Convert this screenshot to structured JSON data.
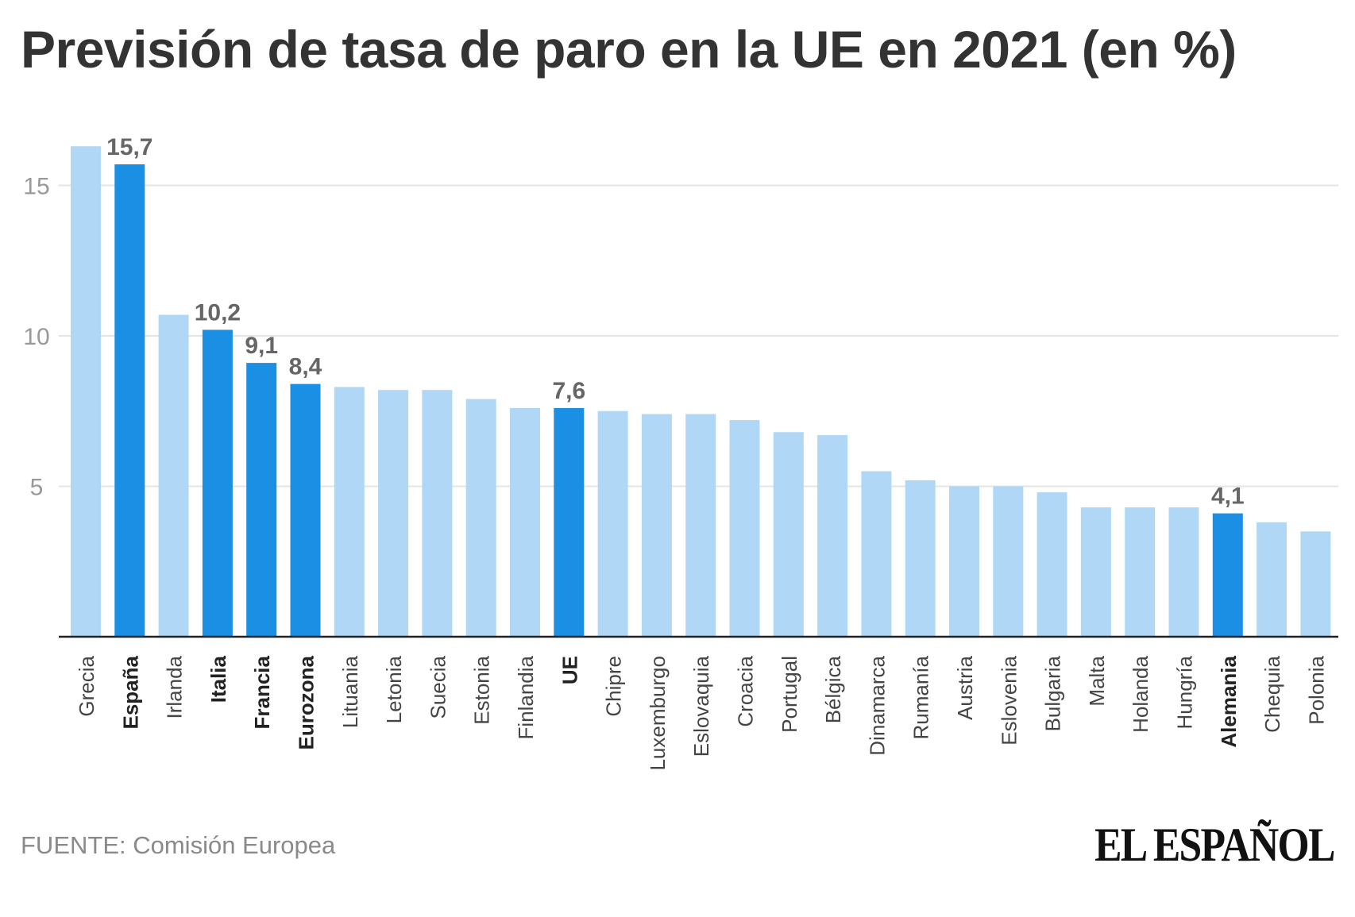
{
  "title": "Previsión de tasa de paro en la UE en 2021 (en %)",
  "source": "FUENTE: Comisión Europea",
  "brand": "EL ESPAÑOL",
  "colors": {
    "highlight": "#1a8fe3",
    "normal": "#b0d8f6",
    "grid": "#e4e4e4",
    "axis": "#222222",
    "tick_label": "#999999",
    "value_label": "#666666",
    "category_label": "#444444"
  },
  "chart_data": {
    "type": "bar",
    "title": "Previsión de tasa de paro en la UE en 2021 (en %)",
    "xlabel": "",
    "ylabel": "",
    "ylim": [
      0,
      16.5
    ],
    "yticks": [
      5,
      10,
      15
    ],
    "grid": true,
    "categories": [
      "Grecia",
      "España",
      "Irlanda",
      "Italia",
      "Francia",
      "Eurozona",
      "Lituania",
      "Letonia",
      "Suecia",
      "Estonia",
      "Finlandia",
      "UE",
      "Chipre",
      "Luxemburgo",
      "Eslovaquia",
      "Croacia",
      "Portugal",
      "Bélgica",
      "Dinamarca",
      "Rumanía",
      "Austria",
      "Eslovenia",
      "Bulgaria",
      "Malta",
      "Holanda",
      "Hungría",
      "Alemania",
      "Chequia",
      "Polonia"
    ],
    "values": [
      16.3,
      15.7,
      10.7,
      10.2,
      9.1,
      8.4,
      8.3,
      8.2,
      8.2,
      7.9,
      7.6,
      7.6,
      7.5,
      7.4,
      7.4,
      7.2,
      6.8,
      6.7,
      5.5,
      5.2,
      5.0,
      5.0,
      4.8,
      4.3,
      4.3,
      4.3,
      4.1,
      3.8,
      3.5
    ],
    "highlighted": [
      "España",
      "Italia",
      "Francia",
      "Eurozona",
      "UE",
      "Alemania"
    ],
    "data_labels": [
      {
        "category": "España",
        "text": "15,7"
      },
      {
        "category": "Italia",
        "text": "10,2"
      },
      {
        "category": "Francia",
        "text": "9,1"
      },
      {
        "category": "Eurozona",
        "text": "8,4"
      },
      {
        "category": "UE",
        "text": "7,6"
      },
      {
        "category": "Alemania",
        "text": "4,1"
      }
    ]
  }
}
